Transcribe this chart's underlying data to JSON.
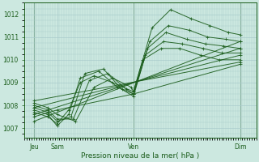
{
  "title": "",
  "xlabel": "Pression niveau de la mer( hPa )",
  "ylabel": "",
  "background_color": "#cce8e0",
  "grid_color": "#aacccc",
  "line_color": "#1a5c1a",
  "xlim": [
    0.0,
    1.0
  ],
  "ylim": [
    1006.6,
    1012.5
  ],
  "yticks": [
    1007,
    1008,
    1009,
    1010,
    1011,
    1012
  ],
  "xtick_positions": [
    0.04,
    0.14,
    0.47,
    0.93
  ],
  "xtick_labels": [
    "Jeu",
    "Sam",
    "Ven",
    "Dim"
  ],
  "vline_positions": [
    0.04,
    0.47,
    0.93
  ],
  "series": [
    {
      "x": [
        0.04,
        0.1,
        0.14,
        0.19,
        0.24,
        0.3,
        0.38,
        0.47,
        0.55,
        0.63,
        0.72,
        0.8,
        0.88,
        0.93
      ],
      "y": [
        1007.7,
        1007.5,
        1007.2,
        1007.8,
        1009.0,
        1009.3,
        1009.0,
        1008.6,
        1011.4,
        1012.2,
        1011.8,
        1011.5,
        1011.2,
        1011.1
      ]
    },
    {
      "x": [
        0.04,
        0.1,
        0.14,
        0.19,
        0.24,
        0.32,
        0.4,
        0.47,
        0.54,
        0.62,
        0.71,
        0.79,
        0.87,
        0.93
      ],
      "y": [
        1007.8,
        1007.6,
        1007.1,
        1007.6,
        1009.2,
        1009.5,
        1008.8,
        1008.5,
        1010.8,
        1011.5,
        1011.3,
        1011.0,
        1010.9,
        1010.8
      ]
    },
    {
      "x": [
        0.04,
        0.1,
        0.14,
        0.2,
        0.26,
        0.34,
        0.42,
        0.47,
        0.53,
        0.61,
        0.7,
        0.78,
        0.86,
        0.93
      ],
      "y": [
        1007.9,
        1007.7,
        1007.3,
        1007.5,
        1009.4,
        1009.6,
        1008.7,
        1008.4,
        1010.5,
        1011.2,
        1010.9,
        1010.7,
        1010.6,
        1010.5
      ]
    },
    {
      "x": [
        0.04,
        0.1,
        0.14,
        0.21,
        0.28,
        0.36,
        0.44,
        0.47,
        0.52,
        0.6,
        0.68,
        0.77,
        0.85,
        0.93
      ],
      "y": [
        1008.0,
        1007.8,
        1007.4,
        1007.4,
        1009.1,
        1009.4,
        1008.7,
        1008.5,
        1010.2,
        1010.8,
        1010.7,
        1010.5,
        1010.3,
        1010.3
      ]
    },
    {
      "x": [
        0.04,
        0.1,
        0.14,
        0.22,
        0.3,
        0.38,
        0.46,
        0.47,
        0.51,
        0.59,
        0.67,
        0.76,
        0.84,
        0.93
      ],
      "y": [
        1008.1,
        1007.9,
        1007.6,
        1007.3,
        1008.8,
        1009.2,
        1008.8,
        1008.6,
        1010.0,
        1010.5,
        1010.5,
        1010.2,
        1010.0,
        1010.0
      ]
    },
    {
      "x": [
        0.04,
        0.14,
        0.47,
        0.93
      ],
      "y": [
        1007.5,
        1007.8,
        1008.5,
        1009.8
      ]
    },
    {
      "x": [
        0.04,
        0.93
      ],
      "y": [
        1007.3,
        1010.8
      ]
    },
    {
      "x": [
        0.04,
        0.93
      ],
      "y": [
        1007.6,
        1010.5
      ]
    },
    {
      "x": [
        0.04,
        0.93
      ],
      "y": [
        1007.9,
        1010.2
      ]
    },
    {
      "x": [
        0.04,
        0.93
      ],
      "y": [
        1008.2,
        1009.9
      ]
    }
  ]
}
